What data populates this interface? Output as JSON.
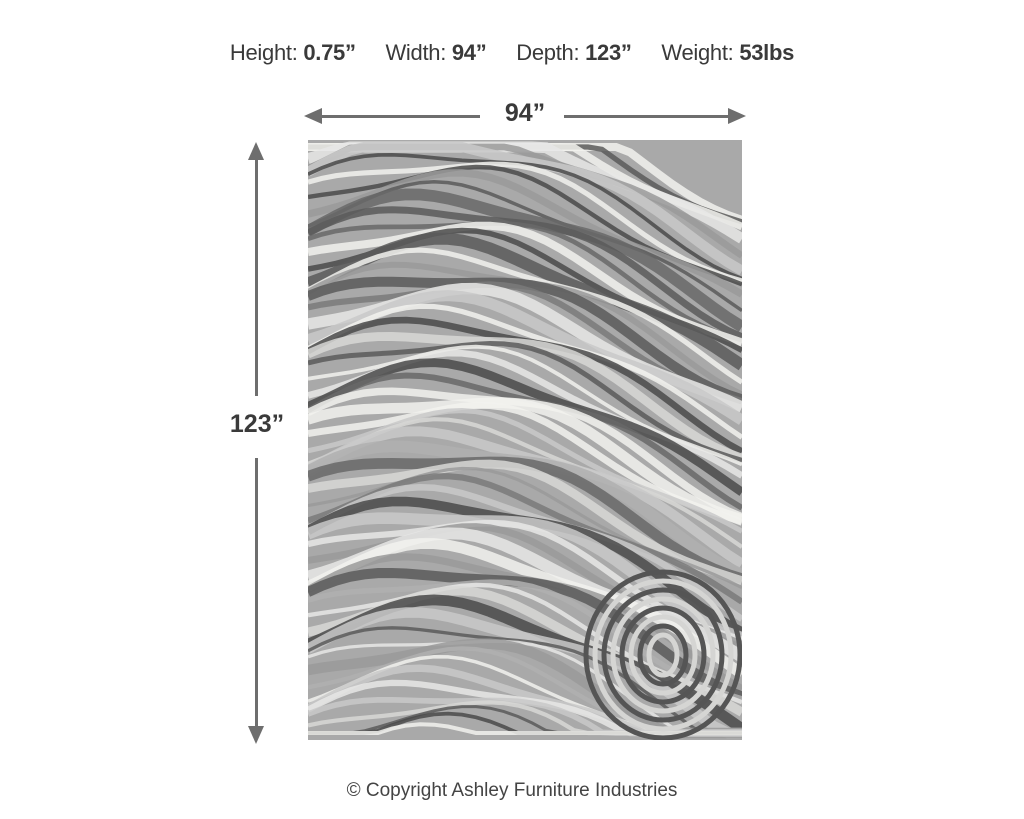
{
  "specs": [
    {
      "label": "Height:",
      "value": "0.75”"
    },
    {
      "label": "Width:",
      "value": "94”"
    },
    {
      "label": "Depth:",
      "value": "123”"
    },
    {
      "label": "Weight:",
      "value": "53lbs"
    }
  ],
  "dimensions": {
    "width_label": "94”",
    "height_label": "123”"
  },
  "product": {
    "image": "gray-marble-wave-rug"
  },
  "colors": {
    "arrow": "#6e6e6e",
    "text": "#3a3a3a"
  },
  "footer": {
    "copyright": "© Copyright Ashley Furniture Industries"
  }
}
